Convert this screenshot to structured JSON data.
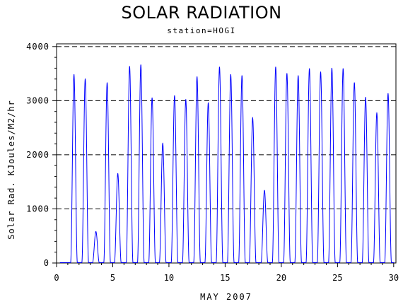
{
  "chart_data": {
    "type": "line",
    "title": "SOLAR RADIATION",
    "subtitle": "station=HOGI",
    "xlabel": "MAY 2007",
    "ylabel": "Solar Rad. KJoules/M2/hr",
    "xlim": [
      0,
      30.2
    ],
    "ylim": [
      0,
      4050
    ],
    "x_ticks": [
      0,
      5,
      10,
      15,
      20,
      25,
      30
    ],
    "y_ticks": [
      0,
      1000,
      2000,
      3000,
      4000
    ],
    "grid": "dashed horizontal reference lines at 1000, 2000, 3000, 4000",
    "line_color": "#0000ff",
    "daily_peaks": [
      {
        "day": 1.55,
        "peak": 3480
      },
      {
        "day": 2.55,
        "peak": 3400
      },
      {
        "day": 3.5,
        "peak": 580
      },
      {
        "day": 4.5,
        "peak": 3330
      },
      {
        "day": 5.45,
        "peak": 1650
      },
      {
        "day": 6.5,
        "peak": 3630
      },
      {
        "day": 7.5,
        "peak": 3660
      },
      {
        "day": 8.5,
        "peak": 3050
      },
      {
        "day": 9.45,
        "peak": 2210
      },
      {
        "day": 10.5,
        "peak": 3090
      },
      {
        "day": 11.5,
        "peak": 3020
      },
      {
        "day": 12.5,
        "peak": 3440
      },
      {
        "day": 13.5,
        "peak": 2960
      },
      {
        "day": 14.5,
        "peak": 3620
      },
      {
        "day": 15.5,
        "peak": 3480
      },
      {
        "day": 16.5,
        "peak": 3460
      },
      {
        "day": 17.45,
        "peak": 2680
      },
      {
        "day": 18.5,
        "peak": 1340
      },
      {
        "day": 19.5,
        "peak": 3620
      },
      {
        "day": 20.5,
        "peak": 3500
      },
      {
        "day": 21.5,
        "peak": 3460
      },
      {
        "day": 22.5,
        "peak": 3590
      },
      {
        "day": 23.5,
        "peak": 3530
      },
      {
        "day": 24.5,
        "peak": 3600
      },
      {
        "day": 25.5,
        "peak": 3590
      },
      {
        "day": 26.5,
        "peak": 3330
      },
      {
        "day": 27.5,
        "peak": 3060
      },
      {
        "day": 28.5,
        "peak": 2770
      },
      {
        "day": 29.5,
        "peak": 3130
      }
    ]
  }
}
